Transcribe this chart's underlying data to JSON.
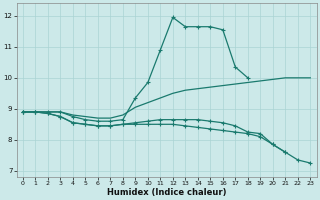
{
  "xlabel": "Humidex (Indice chaleur)",
  "xlim": [
    -0.5,
    23.5
  ],
  "ylim": [
    6.8,
    12.4
  ],
  "xticks": [
    0,
    1,
    2,
    3,
    4,
    5,
    6,
    7,
    8,
    9,
    10,
    11,
    12,
    13,
    14,
    15,
    16,
    17,
    18,
    19,
    20,
    21,
    22,
    23
  ],
  "yticks": [
    7,
    8,
    9,
    10,
    11,
    12
  ],
  "bg_color": "#cce9e9",
  "line_color": "#1a7a6e",
  "grid_color": "#aad4d4",
  "curve1_x": [
    0,
    1,
    2,
    3,
    4,
    5,
    6,
    7,
    8,
    9,
    10,
    11,
    12,
    13,
    14,
    15,
    16,
    17,
    18
  ],
  "curve1_y": [
    8.9,
    8.9,
    8.9,
    8.9,
    8.75,
    8.65,
    8.6,
    8.6,
    8.65,
    9.35,
    9.85,
    10.9,
    11.95,
    11.65,
    11.65,
    11.65,
    11.55,
    10.35,
    10.0
  ],
  "curve2_x": [
    0,
    1,
    2,
    3,
    4,
    5,
    6,
    7,
    8,
    9,
    10,
    11,
    12,
    13,
    14,
    15,
    16,
    17,
    18,
    19,
    20,
    21,
    22,
    23
  ],
  "curve2_y": [
    8.9,
    8.9,
    8.9,
    8.9,
    8.8,
    8.75,
    8.7,
    8.7,
    8.8,
    9.05,
    9.2,
    9.35,
    9.5,
    9.6,
    9.65,
    9.7,
    9.75,
    9.8,
    9.85,
    9.9,
    9.95,
    10.0,
    10.0,
    10.0
  ],
  "curve3_x": [
    0,
    1,
    2,
    3,
    4,
    5,
    6,
    7,
    8,
    9,
    10,
    11,
    12,
    13,
    14,
    15,
    16,
    17,
    18,
    19,
    20,
    21
  ],
  "curve3_y": [
    8.9,
    8.9,
    8.85,
    8.75,
    8.55,
    8.5,
    8.45,
    8.45,
    8.5,
    8.55,
    8.6,
    8.65,
    8.65,
    8.65,
    8.65,
    8.6,
    8.55,
    8.45,
    8.25,
    8.2,
    7.85,
    7.6
  ],
  "curve4_x": [
    0,
    1,
    2,
    3,
    4,
    5,
    6,
    7,
    8,
    9,
    10,
    11,
    12,
    13,
    14,
    15,
    16,
    17,
    18,
    19,
    20,
    21,
    22,
    23
  ],
  "curve4_y": [
    8.9,
    8.9,
    8.85,
    8.75,
    8.55,
    8.5,
    8.45,
    8.45,
    8.5,
    8.5,
    8.5,
    8.5,
    8.5,
    8.45,
    8.4,
    8.35,
    8.3,
    8.25,
    8.2,
    8.1,
    7.85,
    7.6,
    7.35,
    7.25
  ]
}
